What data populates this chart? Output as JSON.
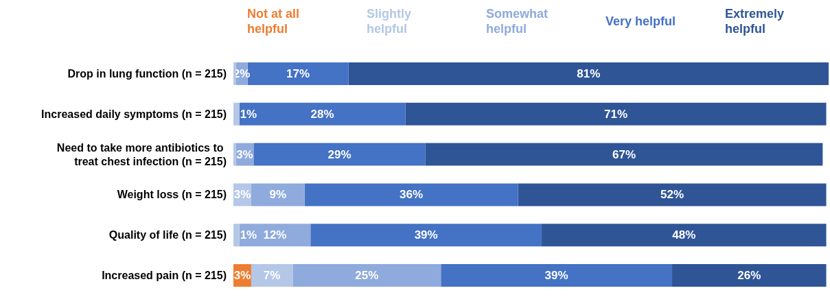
{
  "chart_data": {
    "type": "bar",
    "orientation": "horizontal",
    "stacked": true,
    "legend": "top",
    "categories": [
      "Drop in lung function (n = 215)",
      "Increased daily symptoms (n = 215)",
      "Need to take more antibiotics to treat chest infection (n = 215)",
      "Weight loss (n = 215)",
      "Quality of life (n = 215)",
      "Increased pain (n = 215)"
    ],
    "series": [
      {
        "name": "Not at all helpful",
        "color": "#ed7d31",
        "values": [
          null,
          null,
          null,
          null,
          null,
          3
        ],
        "value_labels": [
          null,
          null,
          null,
          null,
          null,
          "3%"
        ]
      },
      {
        "name": "Slightly helpful",
        "color": "#b4c7e7",
        "values": [
          0.4,
          1,
          0.4,
          3,
          1,
          7
        ],
        "value_labels": [
          null,
          "1%",
          null,
          "3%",
          "1%",
          "7%"
        ]
      },
      {
        "name": "Somewhat helpful",
        "color": "#8faadc",
        "values": [
          2,
          null,
          3,
          9,
          12,
          25
        ],
        "value_labels": [
          "2%",
          null,
          "3%",
          "9%",
          "12%",
          "25%"
        ]
      },
      {
        "name": "Very helpful",
        "color": "#4472c4",
        "values": [
          17,
          28,
          29,
          36,
          39,
          39
        ],
        "value_labels": [
          "17%",
          "28%",
          "29%",
          "36%",
          "39%",
          "39%"
        ]
      },
      {
        "name": "Extremely helpful",
        "color": "#2f5597",
        "values": [
          81,
          71,
          67,
          52,
          48,
          26
        ],
        "value_labels": [
          "81%",
          "71%",
          "67%",
          "52%",
          "48%",
          "26%"
        ]
      }
    ]
  }
}
